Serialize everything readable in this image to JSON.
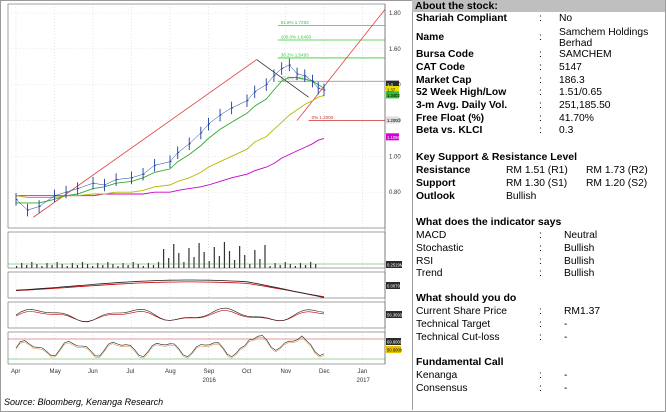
{
  "source": "Source: Bloomberg, Kenanga Research",
  "stock": {
    "header": "About the stock:",
    "rows": [
      {
        "label": "Shariah Compliant",
        "value": "No"
      },
      {
        "label": "Name",
        "value": "Samchem Holdings Berhad"
      },
      {
        "label": "Bursa Code",
        "value": "SAMCHEM"
      },
      {
        "label": "CAT Code",
        "value": "5147"
      },
      {
        "label": "Market Cap",
        "value": "186.3"
      },
      {
        "label": "52 Week High/Low",
        "value": "1.51/0.65"
      },
      {
        "label": "3-m Avg. Daily Vol.",
        "value": "251,185.50"
      },
      {
        "label": "Free Float (%)",
        "value": "41.70%"
      },
      {
        "label": "Beta vs. KLCI",
        "value": "0.3"
      }
    ]
  },
  "levels": {
    "title": "Key Support & Resistance Level",
    "resistance": {
      "label": "Resistance",
      "s1": "RM 1.51 (R1)",
      "s2": "RM 1.73 (R2)"
    },
    "support": {
      "label": "Support",
      "s1": "RM 1.30 (S1)",
      "s2": "RM 1.20 (S2)"
    },
    "outlook": {
      "label": "Outlook",
      "value": "Bullish"
    }
  },
  "indicators": {
    "title": "What does the indicator says",
    "rows": [
      {
        "label": "MACD",
        "value": "Neutral"
      },
      {
        "label": "Stochastic",
        "value": "Bullish"
      },
      {
        "label": "RSI",
        "value": "Bullish"
      },
      {
        "label": "Trend",
        "value": "Bullish"
      }
    ]
  },
  "action": {
    "title": "What should you do",
    "rows": [
      {
        "label": "Current Share Price",
        "value": "RM1.37"
      },
      {
        "label": "Technical Target",
        "value": "-"
      },
      {
        "label": "Technical Cut-loss",
        "value": "-"
      }
    ]
  },
  "fundamental": {
    "title": "Fundamental Call",
    "rows": [
      {
        "label": "Kenanga",
        "value": "-"
      },
      {
        "label": "Consensus",
        "value": "-"
      }
    ]
  },
  "chart_data": {
    "type": "line",
    "title": "",
    "x_months": [
      "Apr",
      "May",
      "Jun",
      "Jul",
      "Aug",
      "Sep",
      "Oct",
      "Nov",
      "Dec",
      "Jan"
    ],
    "x_years": [
      {
        "label": "2016",
        "month_index": 5
      },
      {
        "label": "2017",
        "month_index": 9
      }
    ],
    "price_panel": {
      "ylim": [
        0.6,
        1.85
      ],
      "y_ticks": [
        0.8,
        1.0,
        1.2,
        1.4,
        1.6,
        1.8
      ],
      "y_tick_labels": [
        "0.80",
        "1.00",
        "1.20",
        "1.40",
        "1.60",
        "1.80"
      ],
      "close_month_index": [
        0.0,
        0.3,
        0.6,
        1.0,
        1.3,
        1.6,
        2.0,
        2.3,
        2.6,
        3.0,
        3.3,
        3.6,
        4.0,
        4.2,
        4.5,
        4.8,
        5.0,
        5.3,
        5.6,
        6.0,
        6.2,
        6.5,
        6.7,
        6.9,
        7.1,
        7.3,
        7.5,
        7.7,
        7.85,
        8.0
      ],
      "close": [
        0.76,
        0.7,
        0.72,
        0.78,
        0.8,
        0.82,
        0.85,
        0.84,
        0.87,
        0.88,
        0.9,
        0.95,
        0.97,
        1.02,
        1.07,
        1.13,
        1.18,
        1.23,
        1.27,
        1.31,
        1.36,
        1.4,
        1.45,
        1.49,
        1.51,
        1.46,
        1.45,
        1.42,
        1.38,
        1.37
      ],
      "ma_fast": [
        0.74,
        0.74,
        0.74,
        0.76,
        0.78,
        0.79,
        0.82,
        0.83,
        0.85,
        0.86,
        0.88,
        0.91,
        0.93,
        0.97,
        1.01,
        1.06,
        1.1,
        1.15,
        1.19,
        1.24,
        1.28,
        1.32,
        1.37,
        1.42,
        1.44,
        1.44,
        1.43,
        1.42,
        1.4,
        1.38
      ],
      "ma_mid": [
        0.78,
        0.77,
        0.77,
        0.77,
        0.78,
        0.78,
        0.79,
        0.79,
        0.8,
        0.8,
        0.81,
        0.83,
        0.84,
        0.86,
        0.88,
        0.91,
        0.94,
        0.97,
        1.0,
        1.04,
        1.08,
        1.11,
        1.15,
        1.19,
        1.23,
        1.26,
        1.29,
        1.31,
        1.33,
        1.34
      ],
      "ma_slow": [
        0.78,
        0.78,
        0.78,
        0.78,
        0.78,
        0.78,
        0.78,
        0.79,
        0.79,
        0.79,
        0.79,
        0.8,
        0.8,
        0.81,
        0.82,
        0.83,
        0.84,
        0.86,
        0.88,
        0.9,
        0.92,
        0.94,
        0.96,
        0.99,
        1.01,
        1.03,
        1.05,
        1.07,
        1.09,
        1.1
      ],
      "fib_levels": [
        {
          "label": "61.8% 1.7293",
          "value": 1.73
        },
        {
          "label": "100.0% 1.6493",
          "value": 1.649
        },
        {
          "label": "38.2% 1.5493",
          "value": 1.549
        },
        {
          "label": "23.6% 1.4193",
          "value": 1.419
        },
        {
          "label": "0% 1.2000",
          "value": 1.2
        }
      ],
      "price_markers": [
        {
          "label": "1.4",
          "value": 1.4,
          "color": "#2b2b2b"
        },
        {
          "label": "1.37",
          "value": 1.37,
          "color": "#e8e000"
        },
        {
          "label": "1.3403",
          "value": 1.34,
          "color": "#33bb33"
        },
        {
          "label": "1.2000",
          "value": 1.2,
          "color": "#dddddd"
        },
        {
          "label": "1.1056",
          "value": 1.106,
          "color": "#d400d4"
        }
      ]
    },
    "volume_panel": {
      "marker": "0.2519M"
    },
    "macd_panel": {
      "marker": "0.0079"
    },
    "stoch_panel": {
      "marker": "56.3693"
    },
    "rsi_panel": {
      "markers": [
        "69.6000",
        "50.6000"
      ]
    },
    "colors": {
      "close": "#1a3d9a",
      "ma_fast": "#2eaa2e",
      "ma_mid": "#b8b800",
      "ma_slow": "#cc00cc",
      "trend": "#e04040"
    }
  }
}
